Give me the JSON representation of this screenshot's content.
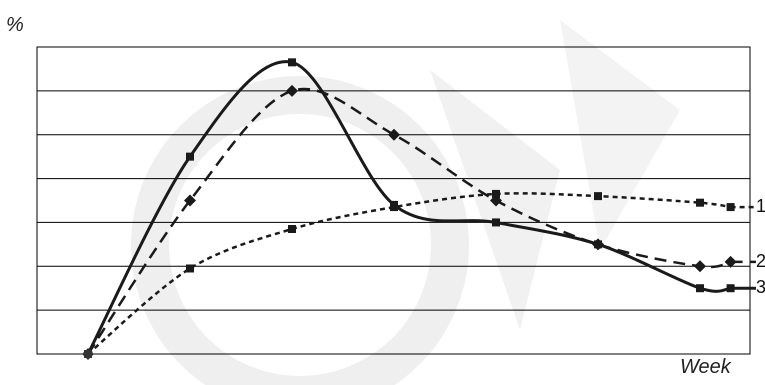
{
  "chart_data": {
    "type": "line",
    "title": "",
    "xlabel": "Week",
    "ylabel": "%",
    "x": [
      0,
      1,
      2,
      3,
      4,
      5,
      6,
      6.3
    ],
    "ylim": [
      0,
      7
    ],
    "grid": true,
    "series": [
      {
        "name": "1",
        "style": "dotted",
        "marker": "square",
        "values": [
          0,
          1.95,
          2.85,
          3.35,
          3.65,
          3.6,
          3.45,
          3.35
        ]
      },
      {
        "name": "2",
        "style": "dashed",
        "marker": "diamond",
        "values": [
          0,
          3.5,
          6.0,
          5.0,
          3.5,
          2.5,
          2.0,
          2.1
        ]
      },
      {
        "name": "3",
        "style": "solid",
        "marker": "square",
        "values": [
          0,
          4.5,
          6.65,
          3.4,
          3.0,
          2.5,
          1.5,
          1.5
        ]
      }
    ],
    "colors": {
      "line": "#1a1a1a",
      "line_mid": "#808080",
      "grid": "#000000",
      "watermark": "#eeeeee"
    }
  }
}
